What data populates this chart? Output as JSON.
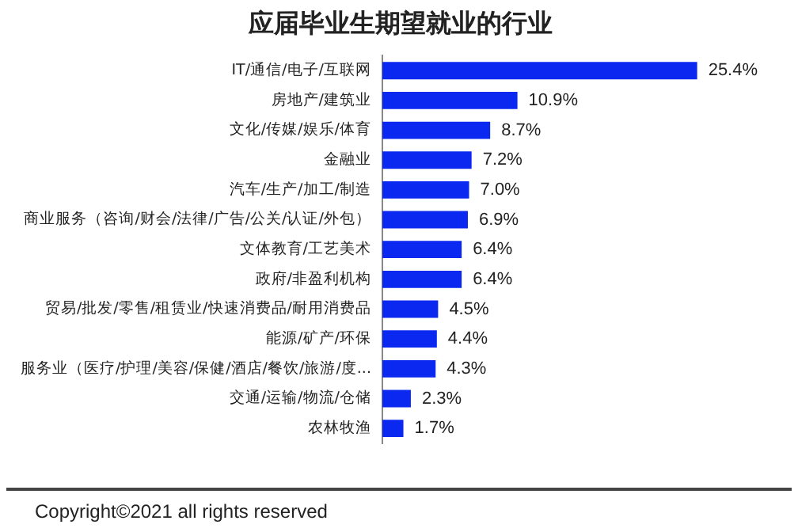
{
  "chart_data": {
    "type": "bar",
    "orientation": "horizontal",
    "title": "应届毕业生期望就业的行业",
    "categories": [
      "IT/通信/电子/互联网",
      "房地产/建筑业",
      "文化/传媒/娱乐/体育",
      "金融业",
      "汽车/生产/加工/制造",
      "商业服务（咨询/财会/法律/广告/公关/认证/外包）",
      "文体教育/工艺美术",
      "政府/非盈利机构",
      "贸易/批发/零售/租赁业/快速消费品/耐用消费品",
      "能源/矿产/环保",
      "服务业（医疗/护理/美容/保健/酒店/餐饮/旅游/度...",
      "交通/运输/物流/仓储",
      "农林牧渔"
    ],
    "values": [
      25.4,
      10.9,
      8.7,
      7.2,
      7.0,
      6.9,
      6.4,
      6.4,
      4.5,
      4.4,
      4.3,
      2.3,
      1.7
    ],
    "value_labels": [
      "25.4%",
      "10.9%",
      "8.7%",
      "7.2%",
      "7.0%",
      "6.9%",
      "6.4%",
      "6.4%",
      "4.5%",
      "4.4%",
      "4.3%",
      "2.3%",
      "1.7%"
    ],
    "color": "#0a28f0",
    "annotations": [
      "Copyright©2021 all rights reserved"
    ]
  }
}
